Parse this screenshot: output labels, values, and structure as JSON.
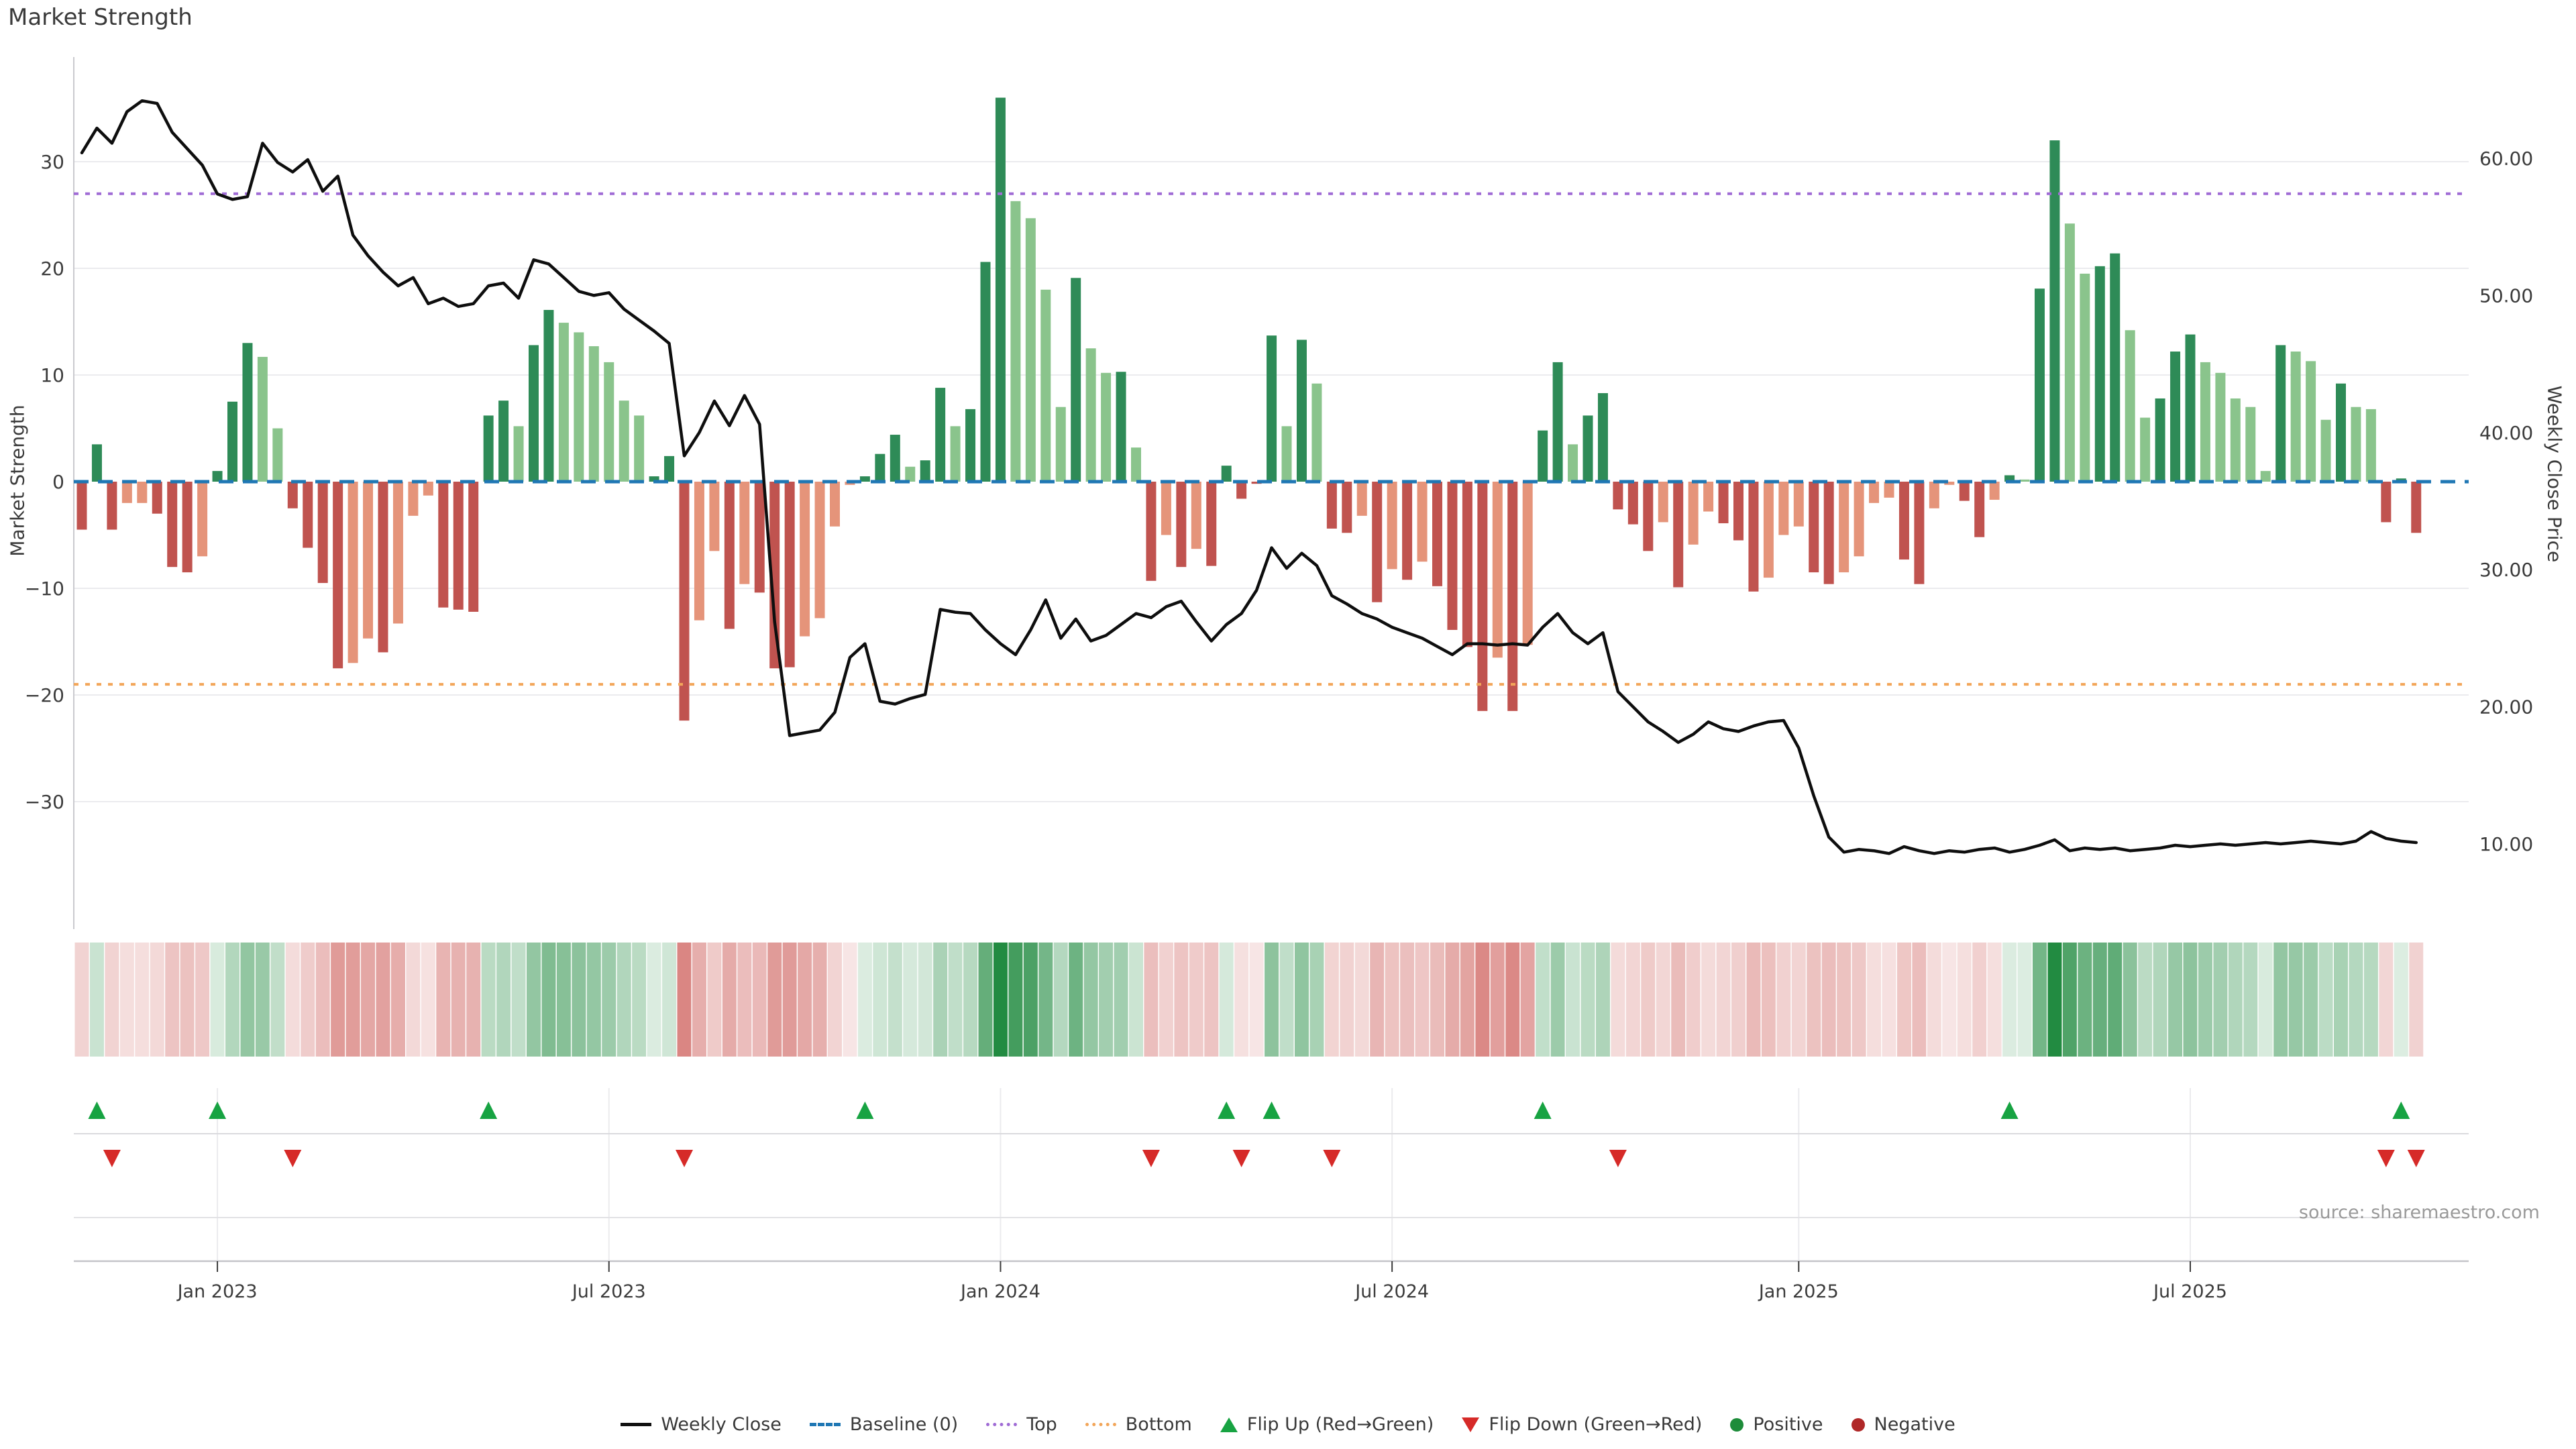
{
  "title": "Market Strength",
  "source_note": "source: sharemaestro.com",
  "axes": {
    "left_label": "Market Strength",
    "right_label": "Weekly Close Price",
    "left_ticks": [
      30,
      20,
      10,
      0,
      -10,
      -20,
      -30
    ],
    "right_ticks": [
      60,
      50,
      40,
      30,
      20,
      10
    ],
    "right_tick_format": [
      "60.00",
      "50.00",
      "40.00",
      "30.00",
      "20.00",
      "10.00"
    ],
    "x_ticks": [
      {
        "week": 9,
        "label": "Jan 2023"
      },
      {
        "week": 35,
        "label": "Jul 2023"
      },
      {
        "week": 61,
        "label": "Jan 2024"
      },
      {
        "week": 87,
        "label": "Jul 2024"
      },
      {
        "week": 114,
        "label": "Jan 2025"
      },
      {
        "week": 140,
        "label": "Jul 2025"
      }
    ]
  },
  "reference_lines": {
    "baseline": {
      "label": "Baseline (0)",
      "value": 0,
      "color": "#1f77b4",
      "style": "dashed"
    },
    "top": {
      "label": "Top",
      "value": 27,
      "color": "#a06cd5",
      "style": "dotted"
    },
    "bottom": {
      "label": "Bottom",
      "value": -19,
      "color": "#f2a65a",
      "style": "dotted"
    }
  },
  "legend": [
    {
      "label": "Weekly Close",
      "type": "line",
      "color": "#111111"
    },
    {
      "label": "Baseline (0)",
      "type": "dashed",
      "color": "#1f77b4"
    },
    {
      "label": "Top",
      "type": "dotted",
      "color": "#a06cd5"
    },
    {
      "label": "Bottom",
      "type": "dotted",
      "color": "#f2a65a"
    },
    {
      "label": "Flip Up (Red→Green)",
      "type": "tri-up",
      "color": "#17a342"
    },
    {
      "label": "Flip Down (Green→Red)",
      "type": "tri-down",
      "color": "#d62a28"
    },
    {
      "label": "Positive",
      "type": "dot",
      "color": "#1d8c3a"
    },
    {
      "label": "Negative",
      "type": "dot",
      "color": "#b02828"
    }
  ],
  "colors": {
    "bar_dark_green": "#2e8b57",
    "bar_light_green": "#8ac48c",
    "bar_red": "#c0534f",
    "bar_salmon": "#e5947a",
    "price_line": "#0e0e0e",
    "baseline": "#1f77b4",
    "top_line": "#a06cd5",
    "bottom_line": "#f2a65a",
    "flip_up": "#17a342",
    "flip_down": "#d62a28",
    "heat_green": "34,139,65",
    "heat_red": "205,92,88",
    "grid": "#ebebee",
    "spine": "#c9c9ce",
    "tick_text": "#3b3b3b"
  },
  "chart_data": {
    "type": "combo",
    "title": "Market Strength",
    "frequency": "weekly",
    "start_date": "2022-10-31",
    "weeks": 156,
    "left_ylabel": "Market Strength",
    "right_ylabel": "Weekly Close Price",
    "left_ylim": [
      -40,
      40
    ],
    "right_ylim": [
      4,
      67
    ],
    "series": [
      {
        "name": "Market Strength",
        "type": "bar",
        "axis": "left",
        "values": [
          -4.5,
          3.5,
          -4.5,
          -2,
          -2,
          -3,
          -8,
          -8.5,
          -7,
          1,
          7.5,
          13,
          11.7,
          5,
          -2.5,
          -6.2,
          -9.5,
          -17.5,
          -17,
          -14.7,
          -16,
          -13.3,
          -3.2,
          -1.3,
          -11.8,
          -12,
          -12.2,
          6.2,
          7.6,
          5.2,
          12.8,
          16.1,
          14.9,
          14,
          12.7,
          11.2,
          7.6,
          6.2,
          0.5,
          2.4,
          -22.4,
          -13,
          -6.5,
          -13.8,
          -9.6,
          -10.4,
          -17.5,
          -17.4,
          -14.5,
          -12.8,
          -4.2,
          -0.3,
          0.5,
          2.6,
          4.4,
          1.4,
          2,
          8.8,
          5.2,
          6.8,
          20.6,
          36,
          26.3,
          24.7,
          18,
          7,
          19.1,
          12.5,
          10.2,
          10.3,
          3.2,
          -9.3,
          -5,
          -8,
          -6.3,
          -7.9,
          1.5,
          -1.6,
          -0.2,
          13.7,
          5.2,
          13.3,
          9.2,
          -4.4,
          -4.8,
          -3.2,
          -11.3,
          -8.2,
          -9.2,
          -7.5,
          -9.8,
          -13.9,
          -15.5,
          -21.5,
          -16.5,
          -21.5,
          -15.3,
          4.8,
          11.2,
          3.5,
          6.2,
          8.3,
          -2.6,
          -4,
          -6.5,
          -3.8,
          -9.9,
          -5.9,
          -2.8,
          -3.9,
          -5.5,
          -10.3,
          -9,
          -5,
          -4.2,
          -8.5,
          -9.6,
          -8.5,
          -7,
          -2,
          -1.5,
          -7.3,
          -9.6,
          -2.5,
          -0.3,
          -1.8,
          -5.2,
          -1.7,
          0.6,
          0.2,
          18.1,
          32,
          24.2,
          19.5,
          20.2,
          21.4,
          14.2,
          6,
          7.8,
          12.2,
          13.8,
          11.2,
          10.2,
          7.8,
          7,
          1,
          12.8,
          12.2,
          11.3,
          5.8,
          9.2,
          7,
          6.8,
          -3.8,
          0.3,
          -4.8
        ],
        "bar_color_codes": [
          "r",
          "g",
          "r",
          "s",
          "s",
          "r",
          "r",
          "r",
          "s",
          "g",
          "g",
          "g",
          "l",
          "l",
          "r",
          "r",
          "r",
          "r",
          "s",
          "s",
          "r",
          "s",
          "s",
          "s",
          "r",
          "r",
          "r",
          "g",
          "g",
          "l",
          "g",
          "g",
          "l",
          "l",
          "l",
          "l",
          "l",
          "l",
          "g",
          "g",
          "r",
          "s",
          "s",
          "r",
          "s",
          "r",
          "r",
          "r",
          "s",
          "s",
          "s",
          "s",
          "g",
          "g",
          "g",
          "l",
          "g",
          "g",
          "l",
          "g",
          "g",
          "g",
          "l",
          "l",
          "l",
          "l",
          "g",
          "l",
          "l",
          "g",
          "l",
          "r",
          "s",
          "r",
          "s",
          "r",
          "g",
          "r",
          "r",
          "g",
          "l",
          "g",
          "l",
          "r",
          "r",
          "s",
          "r",
          "s",
          "r",
          "s",
          "r",
          "r",
          "r",
          "r",
          "s",
          "r",
          "s",
          "g",
          "g",
          "l",
          "g",
          "g",
          "r",
          "r",
          "r",
          "s",
          "r",
          "s",
          "s",
          "r",
          "r",
          "r",
          "s",
          "s",
          "s",
          "r",
          "r",
          "s",
          "s",
          "s",
          "s",
          "r",
          "r",
          "s",
          "s",
          "r",
          "r",
          "s",
          "g",
          "l",
          "g",
          "g",
          "l",
          "l",
          "g",
          "g",
          "l",
          "l",
          "g",
          "g",
          "g",
          "l",
          "l",
          "l",
          "l",
          "l",
          "g",
          "l",
          "l",
          "l",
          "g",
          "l",
          "l",
          "r",
          "g",
          "r"
        ]
      },
      {
        "name": "Weekly Close",
        "type": "line",
        "axis": "right",
        "values": [
          60.4,
          62.2,
          61.1,
          63.4,
          64.2,
          64.0,
          61.9,
          60.7,
          59.5,
          57.4,
          57.0,
          57.2,
          61.1,
          59.7,
          59.0,
          59.9,
          57.6,
          58.7,
          54.4,
          52.9,
          51.7,
          50.7,
          51.3,
          49.4,
          49.8,
          49.2,
          49.4,
          50.7,
          50.9,
          49.8,
          52.6,
          52.3,
          51.3,
          50.3,
          50.0,
          50.2,
          49.0,
          48.2,
          47.4,
          46.5,
          38.3,
          40.0,
          42.3,
          40.5,
          42.7,
          40.6,
          26.2,
          17.9,
          18.1,
          18.3,
          19.6,
          23.6,
          24.6,
          20.4,
          20.2,
          20.6,
          20.9,
          27.1,
          26.9,
          26.8,
          25.6,
          24.6,
          23.8,
          25.6,
          27.8,
          25.0,
          26.4,
          24.8,
          25.2,
          26.0,
          26.8,
          26.5,
          27.3,
          27.7,
          26.2,
          24.8,
          26.0,
          26.8,
          28.5,
          31.6,
          30.1,
          31.2,
          30.3,
          28.1,
          27.5,
          26.8,
          26.4,
          25.8,
          25.4,
          25.0,
          24.4,
          23.8,
          24.6,
          24.6,
          24.5,
          24.6,
          24.5,
          25.8,
          26.8,
          25.4,
          24.6,
          25.4,
          21.1,
          20.0,
          18.9,
          18.2,
          17.4,
          18.0,
          18.9,
          18.4,
          18.2,
          18.6,
          18.9,
          19.0,
          17.0,
          13.5,
          10.5,
          9.4,
          9.6,
          9.5,
          9.3,
          9.8,
          9.5,
          9.3,
          9.5,
          9.4,
          9.6,
          9.7,
          9.4,
          9.6,
          9.9,
          10.3,
          9.5,
          9.7,
          9.6,
          9.7,
          9.5,
          9.6,
          9.7,
          9.9,
          9.8,
          9.9,
          10.0,
          9.9,
          10.0,
          10.1,
          10.0,
          10.1,
          10.2,
          10.1,
          10.0,
          10.2,
          10.9,
          10.4,
          10.2,
          10.1
        ]
      }
    ],
    "heatmap": {
      "description": "weekly strength sign/intensity strip",
      "positive_rgb": "34,139,65",
      "negative_rgb": "205,92,88"
    },
    "flip_up_weeks": [
      1,
      9,
      27,
      52,
      76,
      79,
      97,
      128,
      154
    ],
    "flip_down_weeks": [
      2,
      14,
      40,
      71,
      77,
      83,
      102,
      153,
      155
    ],
    "grid": true,
    "legend_position": "bottom-center"
  }
}
